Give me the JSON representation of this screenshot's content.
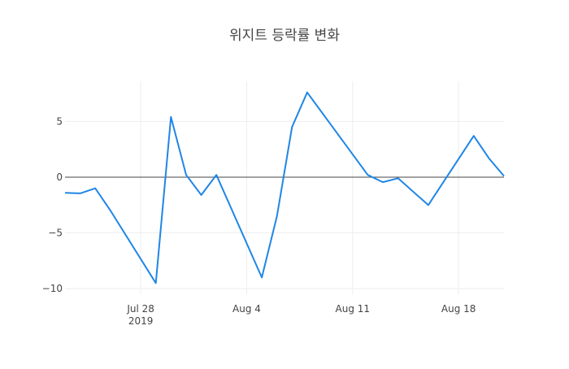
{
  "chart_data": {
    "type": "line",
    "title": "위지트 등락률 변화",
    "xlabel": "",
    "ylabel": "",
    "x_axis": {
      "type": "date",
      "range": [
        "2019-07-23",
        "2019-08-21"
      ],
      "ticks": [
        {
          "date": "2019-07-28",
          "label": "Jul 28",
          "sublabel": "2019"
        },
        {
          "date": "2019-08-04",
          "label": "Aug 4",
          "sublabel": ""
        },
        {
          "date": "2019-08-11",
          "label": "Aug 11",
          "sublabel": ""
        },
        {
          "date": "2019-08-18",
          "label": "Aug 18",
          "sublabel": ""
        }
      ]
    },
    "y_axis": {
      "range": [
        -10.5,
        8.6
      ],
      "ticks": [
        {
          "value": 5,
          "label": "5"
        },
        {
          "value": 0,
          "label": "0"
        },
        {
          "value": -5,
          "label": "−5"
        },
        {
          "value": -10,
          "label": "−10"
        }
      ],
      "zeroline": true
    },
    "grid": true,
    "colors": {
      "line": "#1f86e6",
      "grid": "#eeeeee",
      "zeroline": "#444444",
      "text": "#444444"
    },
    "series": [
      {
        "x": [
          "2019-07-23",
          "2019-07-24",
          "2019-07-25",
          "2019-07-26",
          "2019-07-29",
          "2019-07-30",
          "2019-07-31",
          "2019-08-01",
          "2019-08-02",
          "2019-08-05",
          "2019-08-06",
          "2019-08-07",
          "2019-08-08",
          "2019-08-12",
          "2019-08-13",
          "2019-08-14",
          "2019-08-16",
          "2019-08-19",
          "2019-08-20",
          "2019-08-21"
        ],
        "y": [
          -1.4,
          -1.45,
          -1.0,
          -3.0,
          -9.5,
          5.4,
          0.2,
          -1.6,
          0.2,
          -9.0,
          -3.5,
          4.5,
          7.6,
          0.2,
          -0.45,
          -0.1,
          -2.5,
          3.7,
          1.7,
          0.1
        ]
      }
    ]
  }
}
